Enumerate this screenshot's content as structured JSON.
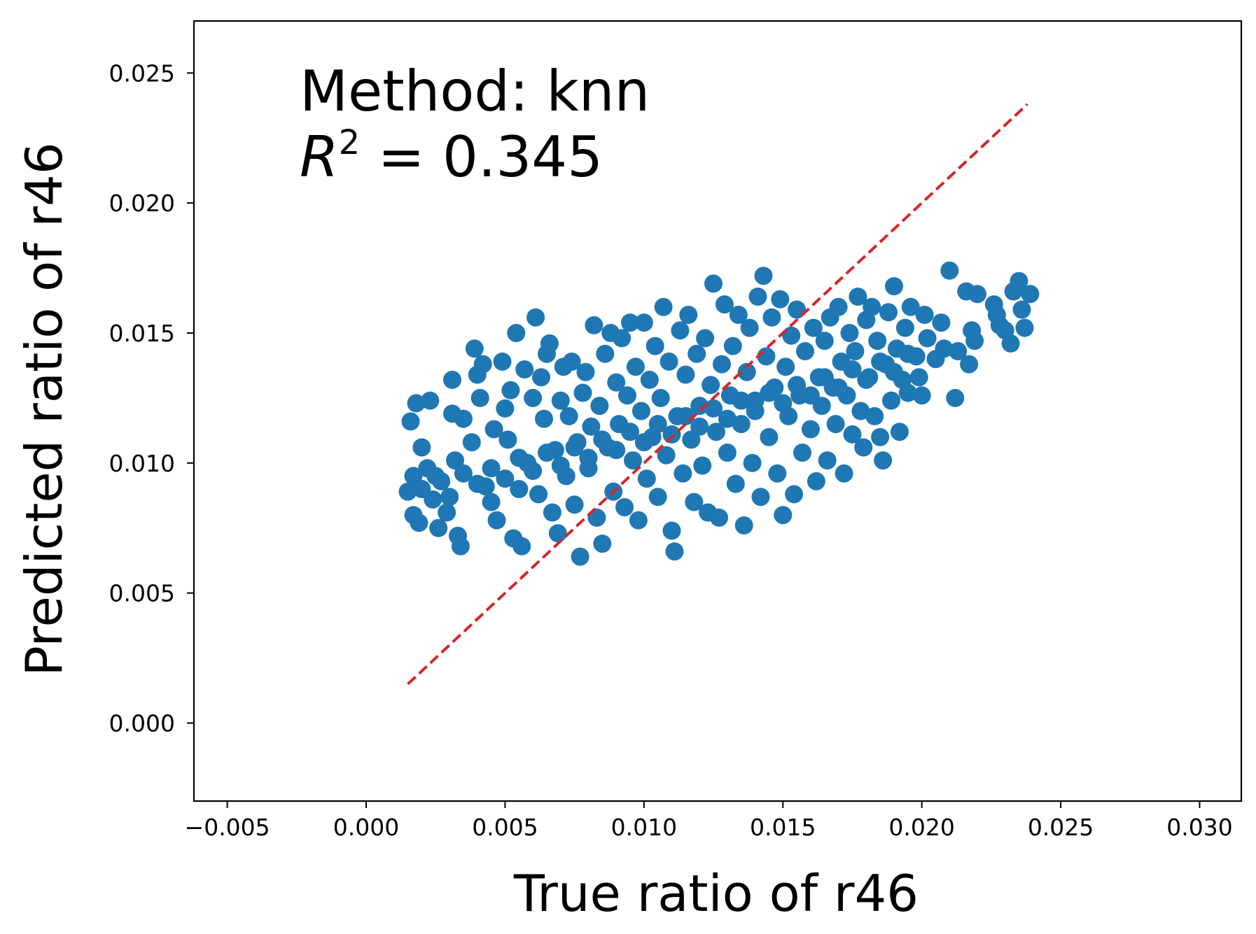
{
  "chart_data": {
    "type": "scatter",
    "xlabel": "True ratio of r46",
    "ylabel": "Predicted ratio of r46",
    "xlim": [
      -0.0062,
      0.0315
    ],
    "ylim": [
      -0.003,
      0.027
    ],
    "x_ticks": [
      -0.005,
      0.0,
      0.005,
      0.01,
      0.015,
      0.02,
      0.025,
      0.03
    ],
    "x_tick_labels": [
      "−0.005",
      "0.000",
      "0.005",
      "0.010",
      "0.015",
      "0.020",
      "0.025",
      "0.030"
    ],
    "y_ticks": [
      0.0,
      0.005,
      0.01,
      0.015,
      0.02,
      0.025
    ],
    "y_tick_labels": [
      "0.000",
      "0.005",
      "0.010",
      "0.015",
      "0.020",
      "0.025"
    ],
    "grid": false,
    "legend": "none",
    "annotation": {
      "method_text": "Method: knn",
      "r2_symbol": "R",
      "r2_exponent": "2",
      "r2_text": " = 0.345"
    },
    "reference_line": {
      "style": "dashed",
      "color": "#d62728",
      "x": [
        0.0015,
        0.0238
      ],
      "y": [
        0.0015,
        0.0238
      ]
    },
    "marker_color": "#1f77b4",
    "points": [
      [
        0.0015,
        0.0089
      ],
      [
        0.0016,
        0.0116
      ],
      [
        0.0017,
        0.008
      ],
      [
        0.0017,
        0.0095
      ],
      [
        0.0018,
        0.0123
      ],
      [
        0.0019,
        0.0077
      ],
      [
        0.002,
        0.0106
      ],
      [
        0.0022,
        0.0098
      ],
      [
        0.0023,
        0.0124
      ],
      [
        0.0024,
        0.0086
      ],
      [
        0.0026,
        0.0075
      ],
      [
        0.0027,
        0.0093
      ],
      [
        0.0029,
        0.0081
      ],
      [
        0.0031,
        0.0132
      ],
      [
        0.0031,
        0.0119
      ],
      [
        0.0032,
        0.0101
      ],
      [
        0.0033,
        0.0072
      ],
      [
        0.0034,
        0.0068
      ],
      [
        0.0035,
        0.0117
      ],
      [
        0.0038,
        0.0108
      ],
      [
        0.0039,
        0.0144
      ],
      [
        0.004,
        0.0134
      ],
      [
        0.0041,
        0.0125
      ],
      [
        0.0042,
        0.0138
      ],
      [
        0.0043,
        0.0091
      ],
      [
        0.0045,
        0.0085
      ],
      [
        0.0046,
        0.0113
      ],
      [
        0.0047,
        0.0078
      ],
      [
        0.0049,
        0.0139
      ],
      [
        0.005,
        0.0121
      ],
      [
        0.0051,
        0.0109
      ],
      [
        0.0052,
        0.0128
      ],
      [
        0.0053,
        0.0071
      ],
      [
        0.0054,
        0.015
      ],
      [
        0.0055,
        0.009
      ],
      [
        0.0056,
        0.0068
      ],
      [
        0.0057,
        0.0136
      ],
      [
        0.0058,
        0.01
      ],
      [
        0.006,
        0.0125
      ],
      [
        0.0061,
        0.0156
      ],
      [
        0.0062,
        0.0088
      ],
      [
        0.0063,
        0.0133
      ],
      [
        0.0064,
        0.0117
      ],
      [
        0.0065,
        0.0142
      ],
      [
        0.0066,
        0.0146
      ],
      [
        0.0067,
        0.0081
      ],
      [
        0.0068,
        0.0105
      ],
      [
        0.0069,
        0.0073
      ],
      [
        0.007,
        0.0124
      ],
      [
        0.0071,
        0.0137
      ],
      [
        0.0072,
        0.0095
      ],
      [
        0.0073,
        0.0118
      ],
      [
        0.0074,
        0.0139
      ],
      [
        0.0075,
        0.0084
      ],
      [
        0.0076,
        0.0108
      ],
      [
        0.0077,
        0.0064
      ],
      [
        0.0078,
        0.0127
      ],
      [
        0.0079,
        0.0135
      ],
      [
        0.008,
        0.0098
      ],
      [
        0.0081,
        0.0114
      ],
      [
        0.0082,
        0.0153
      ],
      [
        0.0083,
        0.0079
      ],
      [
        0.0084,
        0.0122
      ],
      [
        0.0085,
        0.0069
      ],
      [
        0.0086,
        0.0142
      ],
      [
        0.0087,
        0.0106
      ],
      [
        0.0088,
        0.015
      ],
      [
        0.0089,
        0.0089
      ],
      [
        0.009,
        0.0131
      ],
      [
        0.0091,
        0.0115
      ],
      [
        0.0092,
        0.0148
      ],
      [
        0.0093,
        0.0083
      ],
      [
        0.0094,
        0.0126
      ],
      [
        0.0095,
        0.0154
      ],
      [
        0.0096,
        0.0101
      ],
      [
        0.0097,
        0.0137
      ],
      [
        0.0098,
        0.0078
      ],
      [
        0.0099,
        0.012
      ],
      [
        0.01,
        0.0154
      ],
      [
        0.0101,
        0.0094
      ],
      [
        0.0102,
        0.0132
      ],
      [
        0.0103,
        0.011
      ],
      [
        0.0104,
        0.0145
      ],
      [
        0.0105,
        0.0087
      ],
      [
        0.0106,
        0.0125
      ],
      [
        0.0107,
        0.016
      ],
      [
        0.0108,
        0.0103
      ],
      [
        0.0109,
        0.0139
      ],
      [
        0.011,
        0.0074
      ],
      [
        0.0111,
        0.0066
      ],
      [
        0.0112,
        0.0118
      ],
      [
        0.0113,
        0.0151
      ],
      [
        0.0114,
        0.0096
      ],
      [
        0.0115,
        0.0134
      ],
      [
        0.0116,
        0.0157
      ],
      [
        0.0117,
        0.0109
      ],
      [
        0.0118,
        0.0085
      ],
      [
        0.0119,
        0.0142
      ],
      [
        0.012,
        0.0122
      ],
      [
        0.0121,
        0.0099
      ],
      [
        0.0122,
        0.0148
      ],
      [
        0.0123,
        0.0081
      ],
      [
        0.0124,
        0.013
      ],
      [
        0.0125,
        0.0169
      ],
      [
        0.0126,
        0.0112
      ],
      [
        0.0127,
        0.0079
      ],
      [
        0.0128,
        0.0138
      ],
      [
        0.0129,
        0.0161
      ],
      [
        0.013,
        0.0104
      ],
      [
        0.0131,
        0.0126
      ],
      [
        0.0132,
        0.0145
      ],
      [
        0.0133,
        0.0092
      ],
      [
        0.0134,
        0.0157
      ],
      [
        0.0135,
        0.0115
      ],
      [
        0.0136,
        0.0076
      ],
      [
        0.0137,
        0.0135
      ],
      [
        0.0138,
        0.0152
      ],
      [
        0.0139,
        0.01
      ],
      [
        0.014,
        0.0124
      ],
      [
        0.0141,
        0.0164
      ],
      [
        0.0142,
        0.0087
      ],
      [
        0.0143,
        0.0172
      ],
      [
        0.0144,
        0.0141
      ],
      [
        0.0145,
        0.011
      ],
      [
        0.0146,
        0.0156
      ],
      [
        0.0147,
        0.0129
      ],
      [
        0.0148,
        0.0096
      ],
      [
        0.0149,
        0.0163
      ],
      [
        0.015,
        0.008
      ],
      [
        0.0151,
        0.0137
      ],
      [
        0.0152,
        0.0118
      ],
      [
        0.0153,
        0.0149
      ],
      [
        0.0154,
        0.0088
      ],
      [
        0.0155,
        0.0159
      ],
      [
        0.0156,
        0.0126
      ],
      [
        0.0157,
        0.0104
      ],
      [
        0.0158,
        0.0143
      ],
      [
        0.016,
        0.0113
      ],
      [
        0.0161,
        0.0152
      ],
      [
        0.0162,
        0.0093
      ],
      [
        0.0163,
        0.0133
      ],
      [
        0.0164,
        0.0122
      ],
      [
        0.0165,
        0.0147
      ],
      [
        0.0166,
        0.0101
      ],
      [
        0.0167,
        0.0156
      ],
      [
        0.0168,
        0.0129
      ],
      [
        0.0169,
        0.0115
      ],
      [
        0.017,
        0.016
      ],
      [
        0.0171,
        0.0139
      ],
      [
        0.0172,
        0.0096
      ],
      [
        0.0173,
        0.0126
      ],
      [
        0.0174,
        0.015
      ],
      [
        0.0175,
        0.0111
      ],
      [
        0.0176,
        0.0143
      ],
      [
        0.0177,
        0.0164
      ],
      [
        0.0178,
        0.012
      ],
      [
        0.0179,
        0.0106
      ],
      [
        0.018,
        0.0155
      ],
      [
        0.0181,
        0.0133
      ],
      [
        0.0182,
        0.016
      ],
      [
        0.0183,
        0.0118
      ],
      [
        0.0184,
        0.0147
      ],
      [
        0.0185,
        0.011
      ],
      [
        0.0186,
        0.0101
      ],
      [
        0.0187,
        0.0138
      ],
      [
        0.0188,
        0.0158
      ],
      [
        0.0189,
        0.0124
      ],
      [
        0.019,
        0.0168
      ],
      [
        0.0191,
        0.0144
      ],
      [
        0.0192,
        0.0112
      ],
      [
        0.0193,
        0.0132
      ],
      [
        0.0194,
        0.0152
      ],
      [
        0.0195,
        0.0127
      ],
      [
        0.0196,
        0.016
      ],
      [
        0.0198,
        0.0141
      ],
      [
        0.0199,
        0.0133
      ],
      [
        0.02,
        0.0126
      ],
      [
        0.0201,
        0.0157
      ],
      [
        0.0202,
        0.0148
      ],
      [
        0.0205,
        0.014
      ],
      [
        0.0207,
        0.0154
      ],
      [
        0.0208,
        0.0144
      ],
      [
        0.021,
        0.0174
      ],
      [
        0.0212,
        0.0125
      ],
      [
        0.0213,
        0.0143
      ],
      [
        0.0216,
        0.0166
      ],
      [
        0.0217,
        0.0138
      ],
      [
        0.0218,
        0.0151
      ],
      [
        0.0219,
        0.0147
      ],
      [
        0.022,
        0.0165
      ],
      [
        0.0226,
        0.0161
      ],
      [
        0.0227,
        0.0157
      ],
      [
        0.0228,
        0.0153
      ],
      [
        0.023,
        0.0151
      ],
      [
        0.0232,
        0.0146
      ],
      [
        0.0233,
        0.0166
      ],
      [
        0.0235,
        0.017
      ],
      [
        0.0236,
        0.0159
      ],
      [
        0.0237,
        0.0152
      ],
      [
        0.0239,
        0.0165
      ],
      [
        0.002,
        0.009
      ],
      [
        0.0025,
        0.0095
      ],
      [
        0.003,
        0.0087
      ],
      [
        0.0035,
        0.0096
      ],
      [
        0.004,
        0.0092
      ],
      [
        0.0045,
        0.0098
      ],
      [
        0.005,
        0.0094
      ],
      [
        0.0055,
        0.0102
      ],
      [
        0.006,
        0.0097
      ],
      [
        0.0065,
        0.0104
      ],
      [
        0.007,
        0.0099
      ],
      [
        0.0075,
        0.0106
      ],
      [
        0.008,
        0.0102
      ],
      [
        0.0085,
        0.0109
      ],
      [
        0.009,
        0.0105
      ],
      [
        0.0095,
        0.0112
      ],
      [
        0.01,
        0.0108
      ],
      [
        0.0105,
        0.0115
      ],
      [
        0.011,
        0.0111
      ],
      [
        0.0115,
        0.0118
      ],
      [
        0.012,
        0.0114
      ],
      [
        0.0125,
        0.0121
      ],
      [
        0.013,
        0.0117
      ],
      [
        0.0135,
        0.0124
      ],
      [
        0.014,
        0.012
      ],
      [
        0.0145,
        0.0127
      ],
      [
        0.015,
        0.0123
      ],
      [
        0.0155,
        0.013
      ],
      [
        0.016,
        0.0126
      ],
      [
        0.0165,
        0.0133
      ],
      [
        0.017,
        0.0129
      ],
      [
        0.0175,
        0.0136
      ],
      [
        0.018,
        0.0132
      ],
      [
        0.0185,
        0.0139
      ],
      [
        0.019,
        0.0135
      ],
      [
        0.0195,
        0.0142
      ]
    ]
  }
}
